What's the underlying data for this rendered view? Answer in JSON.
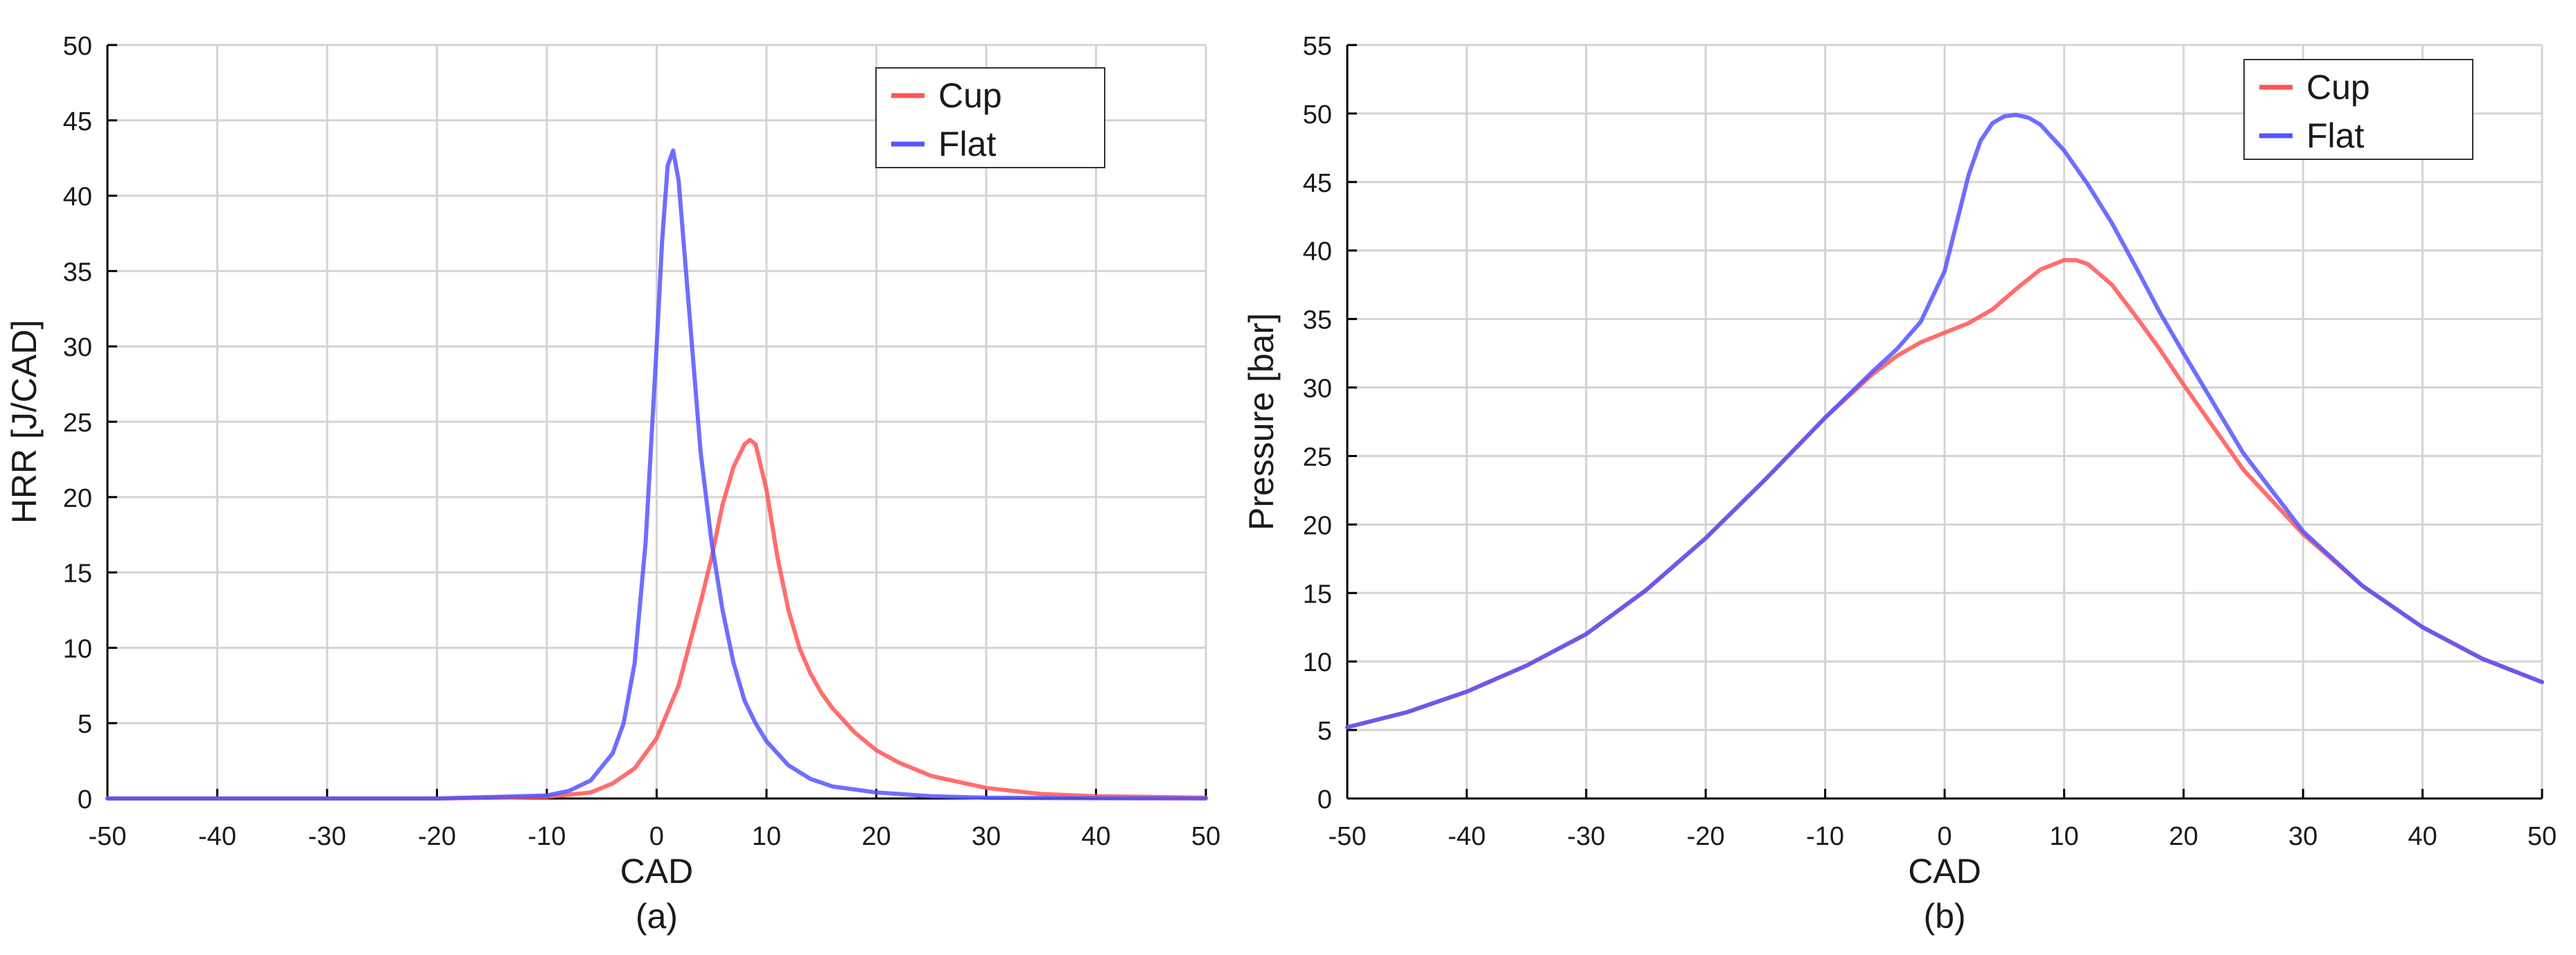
{
  "chart_data": [
    {
      "type": "line",
      "caption": "(a)",
      "xlabel": "CAD",
      "ylabel": "HRR [J/CAD]",
      "xlim": [
        -50,
        50
      ],
      "ylim": [
        0,
        50
      ],
      "xticks": [
        -50,
        -40,
        -30,
        -20,
        -10,
        0,
        10,
        20,
        30,
        40,
        50
      ],
      "yticks": [
        0,
        5,
        10,
        15,
        20,
        25,
        30,
        35,
        40,
        45,
        50
      ],
      "grid": true,
      "legend_position": "top-right",
      "series": [
        {
          "name": "Cup",
          "color": "#ff5555",
          "x": [
            -50,
            -20,
            -10,
            -6,
            -4,
            -2,
            0,
            2,
            4,
            5,
            6,
            7,
            8,
            8.5,
            9,
            10,
            11,
            12,
            13,
            14,
            15,
            16,
            18,
            20,
            22,
            25,
            30,
            35,
            40,
            50
          ],
          "y": [
            0,
            0,
            0.1,
            0.4,
            1.0,
            2.0,
            4.0,
            7.5,
            13.0,
            16.0,
            19.5,
            22.0,
            23.5,
            23.8,
            23.5,
            20.5,
            16.0,
            12.5,
            10.0,
            8.3,
            7.0,
            6.0,
            4.4,
            3.2,
            2.4,
            1.5,
            0.7,
            0.3,
            0.15,
            0.05
          ]
        },
        {
          "name": "Flat",
          "color": "#5555ff",
          "x": [
            -50,
            -20,
            -10,
            -8,
            -6,
            -4,
            -3,
            -2,
            -1,
            0,
            0.5,
            1,
            1.5,
            2,
            3,
            4,
            5,
            6,
            7,
            8,
            9,
            10,
            12,
            14,
            16,
            20,
            25,
            30,
            40,
            50
          ],
          "y": [
            0,
            0,
            0.2,
            0.5,
            1.2,
            3.0,
            5.0,
            9.0,
            17.0,
            30.0,
            37.0,
            42.0,
            43.0,
            41.0,
            32.0,
            23.0,
            17.0,
            12.5,
            9.0,
            6.5,
            5.0,
            3.8,
            2.2,
            1.3,
            0.8,
            0.4,
            0.15,
            0.05,
            0.02,
            0
          ]
        }
      ]
    },
    {
      "type": "line",
      "caption": "(b)",
      "xlabel": "CAD",
      "ylabel": "Pressure [bar]",
      "xlim": [
        -50,
        50
      ],
      "ylim": [
        0,
        55
      ],
      "xticks": [
        -50,
        -40,
        -30,
        -20,
        -10,
        0,
        10,
        20,
        30,
        40,
        50
      ],
      "yticks": [
        0,
        5,
        10,
        15,
        20,
        25,
        30,
        35,
        40,
        45,
        50,
        55
      ],
      "grid": true,
      "legend_position": "top-right",
      "series": [
        {
          "name": "Cup",
          "color": "#ff5555",
          "x": [
            -50,
            -45,
            -40,
            -35,
            -30,
            -25,
            -20,
            -15,
            -10,
            -6,
            -4,
            -2,
            0,
            2,
            4,
            6,
            8,
            10,
            11,
            12,
            14,
            16,
            18,
            20,
            25,
            30,
            35,
            40,
            45,
            50
          ],
          "y": [
            5.2,
            6.3,
            7.8,
            9.7,
            12.0,
            15.2,
            19.0,
            23.3,
            27.8,
            31.0,
            32.3,
            33.3,
            34.0,
            34.7,
            35.7,
            37.2,
            38.6,
            39.3,
            39.3,
            39.0,
            37.5,
            35.2,
            32.8,
            30.2,
            24.0,
            19.3,
            15.5,
            12.5,
            10.2,
            8.5
          ]
        },
        {
          "name": "Flat",
          "color": "#5555ff",
          "x": [
            -50,
            -45,
            -40,
            -35,
            -30,
            -25,
            -20,
            -15,
            -10,
            -6,
            -4,
            -2,
            0,
            1,
            2,
            3,
            4,
            5,
            6,
            7,
            8,
            10,
            12,
            14,
            16,
            18,
            20,
            25,
            30,
            35,
            40,
            45,
            50
          ],
          "y": [
            5.2,
            6.3,
            7.8,
            9.7,
            12.0,
            15.2,
            19.0,
            23.3,
            27.8,
            31.2,
            32.8,
            34.8,
            38.5,
            42.0,
            45.5,
            48.0,
            49.3,
            49.8,
            49.9,
            49.7,
            49.2,
            47.3,
            44.8,
            42.0,
            38.8,
            35.5,
            32.5,
            25.2,
            19.5,
            15.5,
            12.5,
            10.2,
            8.5
          ]
        }
      ]
    }
  ]
}
